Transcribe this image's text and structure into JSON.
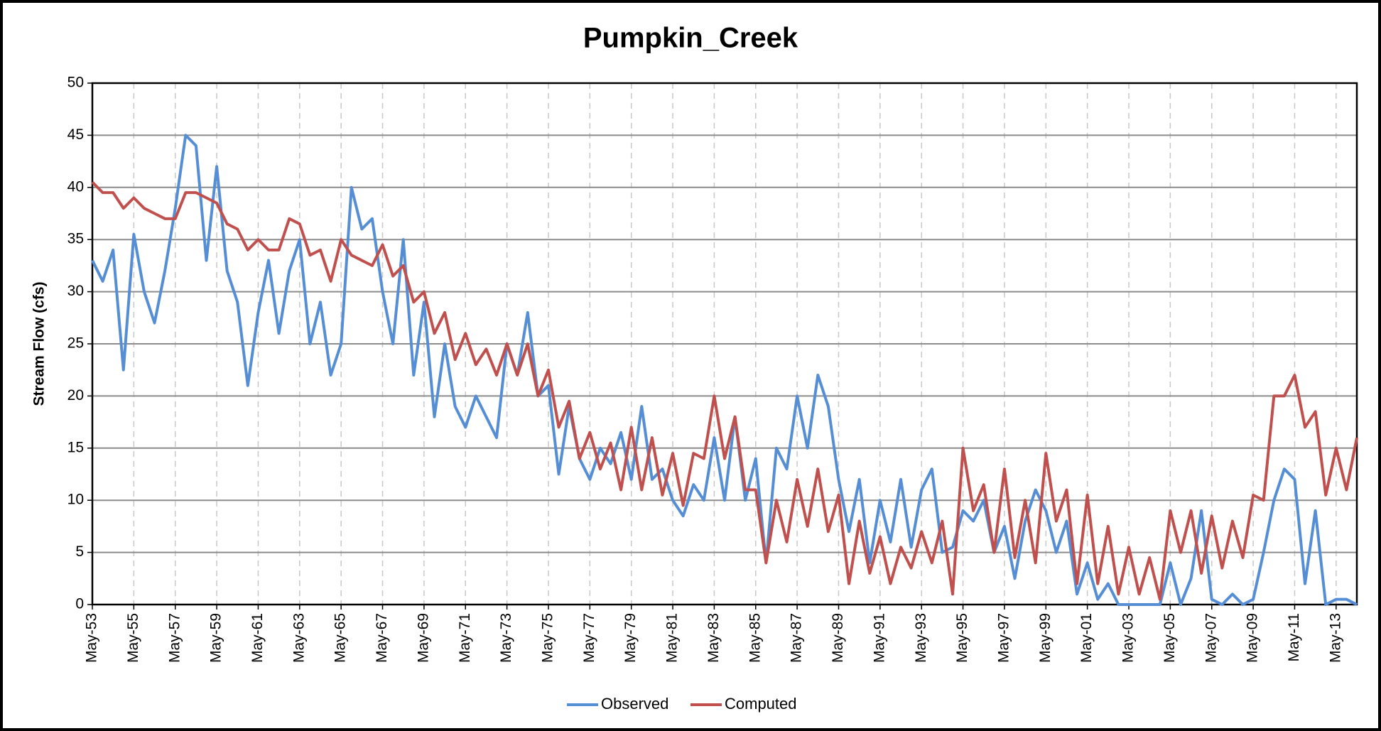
{
  "chart_data": {
    "type": "line",
    "title": "Pumpkin_Creek",
    "y_label": "Stream Flow (cfs)",
    "categories": [
      "May-53",
      null,
      null,
      null,
      "May-55",
      null,
      null,
      null,
      "May-57",
      null,
      null,
      null,
      "May-59",
      null,
      null,
      null,
      "May-61",
      null,
      null,
      null,
      "May-63",
      null,
      null,
      null,
      "May-65",
      null,
      null,
      null,
      "May-67",
      null,
      null,
      null,
      "May-69",
      null,
      null,
      null,
      "May-71",
      null,
      null,
      null,
      "May-73",
      null,
      null,
      null,
      "May-75",
      null,
      null,
      null,
      "May-77",
      null,
      null,
      null,
      "May-79",
      null,
      null,
      null,
      "May-81",
      null,
      null,
      null,
      "May-83",
      null,
      null,
      null,
      "May-85",
      null,
      null,
      null,
      "May-87",
      null,
      null,
      null,
      "May-89",
      null,
      null,
      null,
      "May-91",
      null,
      null,
      null,
      "May-93",
      null,
      null,
      null,
      "May-95",
      null,
      null,
      null,
      "May-97",
      null,
      null,
      null,
      "May-99",
      null,
      null,
      null,
      "May-01",
      null,
      null,
      null,
      "May-03",
      null,
      null,
      null,
      "May-05",
      null,
      null,
      null,
      "May-07",
      null,
      null,
      null,
      "May-09",
      null,
      null,
      null,
      "May-11",
      null,
      null,
      null,
      "May-13",
      null,
      null
    ],
    "series": [
      {
        "name": "Observed",
        "color": "#558ed5",
        "values": [
          33,
          31,
          34,
          22.5,
          35.5,
          30,
          27,
          32,
          38,
          45,
          44,
          33,
          42,
          32,
          29,
          21,
          28,
          33,
          26,
          32,
          35,
          25,
          29,
          22,
          25,
          40,
          36,
          37,
          30,
          25,
          35,
          22,
          29,
          18,
          25,
          19,
          17,
          20,
          18,
          16,
          25,
          22,
          28,
          20,
          21,
          12.5,
          19,
          14,
          12,
          15,
          13.5,
          16.5,
          12,
          19,
          12,
          13,
          10,
          8.5,
          11.5,
          10,
          16,
          10,
          18,
          10,
          14,
          4,
          15,
          13,
          20,
          15,
          22,
          19,
          12,
          7,
          12,
          4,
          10,
          6,
          12,
          5.5,
          11,
          13,
          5,
          5.5,
          9,
          8,
          10,
          5,
          7.5,
          2.5,
          8,
          11,
          9,
          5,
          8,
          1,
          4,
          0.5,
          2,
          0,
          0,
          0,
          0,
          0,
          4,
          0,
          2.5,
          9,
          0.5,
          0,
          1,
          0,
          0.5,
          5,
          10,
          13,
          12,
          2,
          9,
          0,
          0.5,
          0.5,
          0
        ]
      },
      {
        "name": "Computed",
        "color": "#c0504d",
        "values": [
          40.5,
          39.5,
          39.5,
          38,
          39,
          38,
          37.5,
          37,
          37,
          39.5,
          39.5,
          39,
          38.5,
          36.5,
          36,
          34,
          35,
          34,
          34,
          37,
          36.5,
          33.5,
          34,
          31,
          35,
          33.5,
          33,
          32.5,
          34.5,
          31.5,
          32.5,
          29,
          30,
          26,
          28,
          23.5,
          26,
          23,
          24.5,
          22,
          25,
          22,
          25,
          20,
          22.5,
          17,
          19.5,
          14,
          16.5,
          13,
          15.5,
          11,
          17,
          11,
          16,
          10.5,
          14.5,
          9.5,
          14.5,
          14,
          20,
          14,
          18,
          11,
          11,
          4,
          10,
          6,
          12,
          7.5,
          13,
          7,
          10.5,
          2,
          8,
          3,
          6.5,
          2,
          5.5,
          3.5,
          7,
          4,
          8,
          1,
          15,
          9,
          11.5,
          5,
          13,
          4.5,
          10,
          4,
          14.5,
          8,
          11,
          2,
          10.5,
          2,
          7.5,
          1,
          5.5,
          1,
          4.5,
          0.5,
          9,
          5,
          9,
          3,
          8.5,
          3.5,
          8,
          4.5,
          10.5,
          10,
          20,
          20,
          22,
          17,
          18.5,
          10.5,
          15,
          11,
          16
        ]
      }
    ],
    "ylim": [
      0,
      50
    ],
    "yticks": [
      0,
      5,
      10,
      15,
      20,
      25,
      30,
      35,
      40,
      45,
      50
    ],
    "grid": true,
    "legend": "bottom"
  }
}
